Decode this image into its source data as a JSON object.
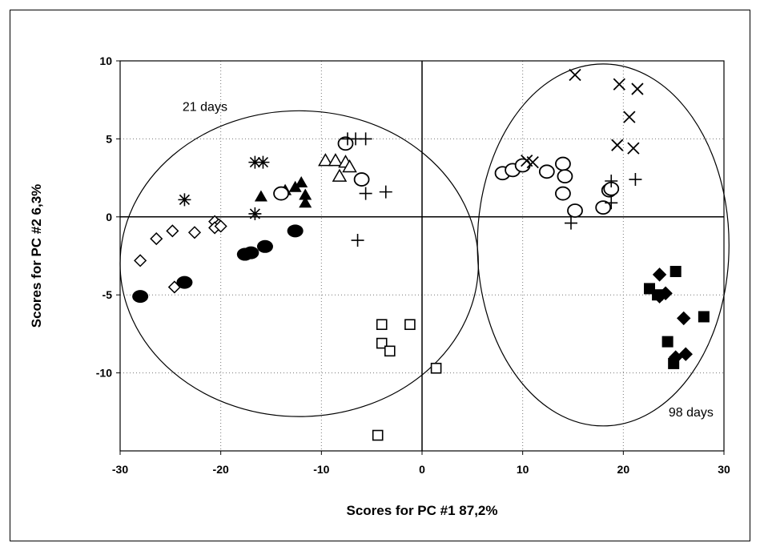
{
  "chart_data": {
    "type": "scatter",
    "title": "",
    "xlabel": "Scores for PC #1  87,2%",
    "ylabel": "Scores for PC #2  6,3%",
    "xlim": [
      -30,
      30
    ],
    "ylim": [
      -15,
      10
    ],
    "xticks": [
      -30,
      -20,
      -10,
      0,
      10,
      20,
      30
    ],
    "yticks": [
      -10,
      -5,
      0,
      5,
      10
    ],
    "grid": "major gridlines (dotted)",
    "legend": "none",
    "annotations": [
      {
        "text": "21 days",
        "x": -23.8,
        "y": 6.8
      },
      {
        "text": "98 days",
        "x": 24.5,
        "y": -12.8
      }
    ],
    "groups": [
      {
        "text": "21 days",
        "center": [
          -12.2,
          -3.0
        ],
        "radius": [
          17.8,
          9.8
        ]
      },
      {
        "text": "98 days",
        "center": [
          18.0,
          -1.8
        ],
        "radius": [
          12.5,
          11.6
        ]
      }
    ],
    "series": [
      {
        "marker": "open-diamond",
        "points": [
          [
            -28.0,
            -2.8
          ],
          [
            -26.4,
            -1.4
          ],
          [
            -24.8,
            -0.9
          ],
          [
            -22.6,
            -1.0
          ],
          [
            -20.6,
            -0.3
          ],
          [
            -20.2,
            -0.5
          ],
          [
            -20.6,
            -0.7
          ],
          [
            -20.0,
            -0.6
          ],
          [
            -24.6,
            -4.5
          ]
        ]
      },
      {
        "marker": "filled-circle",
        "points": [
          [
            -28.0,
            -5.1
          ],
          [
            -23.6,
            -4.2
          ],
          [
            -17.6,
            -2.4
          ],
          [
            -17.0,
            -2.3
          ],
          [
            -15.6,
            -1.9
          ],
          [
            -12.6,
            -0.9
          ]
        ]
      },
      {
        "marker": "asterisk",
        "points": [
          [
            -23.6,
            1.1
          ],
          [
            -16.6,
            3.5
          ],
          [
            -15.8,
            3.5
          ],
          [
            -16.6,
            0.2
          ]
        ]
      },
      {
        "marker": "filled-triangle",
        "points": [
          [
            -16.0,
            1.3
          ],
          [
            -13.6,
            1.7
          ],
          [
            -12.6,
            1.9
          ],
          [
            -12.0,
            2.2
          ],
          [
            -11.6,
            1.4
          ],
          [
            -11.6,
            0.9
          ]
        ]
      },
      {
        "marker": "open-triangle",
        "points": [
          [
            -9.6,
            3.6
          ],
          [
            -8.6,
            3.6
          ],
          [
            -8.2,
            2.6
          ],
          [
            -7.6,
            3.5
          ],
          [
            -7.2,
            3.2
          ]
        ]
      },
      {
        "marker": "open-circle",
        "points": [
          [
            -14.0,
            1.5
          ],
          [
            -7.6,
            4.7
          ],
          [
            -6.0,
            2.4
          ],
          [
            8.0,
            2.8
          ],
          [
            9.0,
            3.0
          ],
          [
            10.0,
            3.3
          ],
          [
            12.4,
            2.9
          ],
          [
            14.0,
            3.4
          ],
          [
            14.2,
            2.6
          ],
          [
            14.0,
            1.5
          ],
          [
            15.2,
            0.4
          ],
          [
            18.0,
            0.6
          ],
          [
            18.6,
            1.7
          ],
          [
            18.8,
            1.8
          ]
        ]
      },
      {
        "marker": "plus",
        "points": [
          [
            -7.4,
            5.0
          ],
          [
            -6.6,
            5.0
          ],
          [
            -5.6,
            5.0
          ],
          [
            -5.6,
            1.5
          ],
          [
            -3.6,
            1.6
          ],
          [
            -6.4,
            -1.5
          ],
          [
            14.8,
            -0.4
          ],
          [
            18.8,
            2.3
          ],
          [
            18.8,
            0.9
          ],
          [
            21.2,
            2.4
          ]
        ]
      },
      {
        "marker": "open-square",
        "points": [
          [
            -4.0,
            -6.9
          ],
          [
            -4.0,
            -8.1
          ],
          [
            -3.2,
            -8.6
          ],
          [
            -1.2,
            -6.9
          ],
          [
            1.4,
            -9.7
          ],
          [
            -4.4,
            -14.0
          ]
        ]
      },
      {
        "marker": "cross",
        "points": [
          [
            10.4,
            3.6
          ],
          [
            11.0,
            3.5
          ],
          [
            15.2,
            9.1
          ],
          [
            19.6,
            8.5
          ],
          [
            21.4,
            8.2
          ],
          [
            20.6,
            6.4
          ],
          [
            19.4,
            4.6
          ],
          [
            21.0,
            4.4
          ]
        ]
      },
      {
        "marker": "filled-square",
        "points": [
          [
            22.6,
            -4.6
          ],
          [
            23.4,
            -5.0
          ],
          [
            25.2,
            -3.5
          ],
          [
            28.0,
            -6.4
          ],
          [
            24.4,
            -8.0
          ],
          [
            25.0,
            -9.4
          ]
        ]
      },
      {
        "marker": "filled-diamond",
        "points": [
          [
            23.6,
            -3.7
          ],
          [
            23.6,
            -5.1
          ],
          [
            24.2,
            -4.9
          ],
          [
            26.0,
            -6.5
          ],
          [
            25.2,
            -9.0
          ],
          [
            26.2,
            -8.8
          ]
        ]
      }
    ]
  }
}
